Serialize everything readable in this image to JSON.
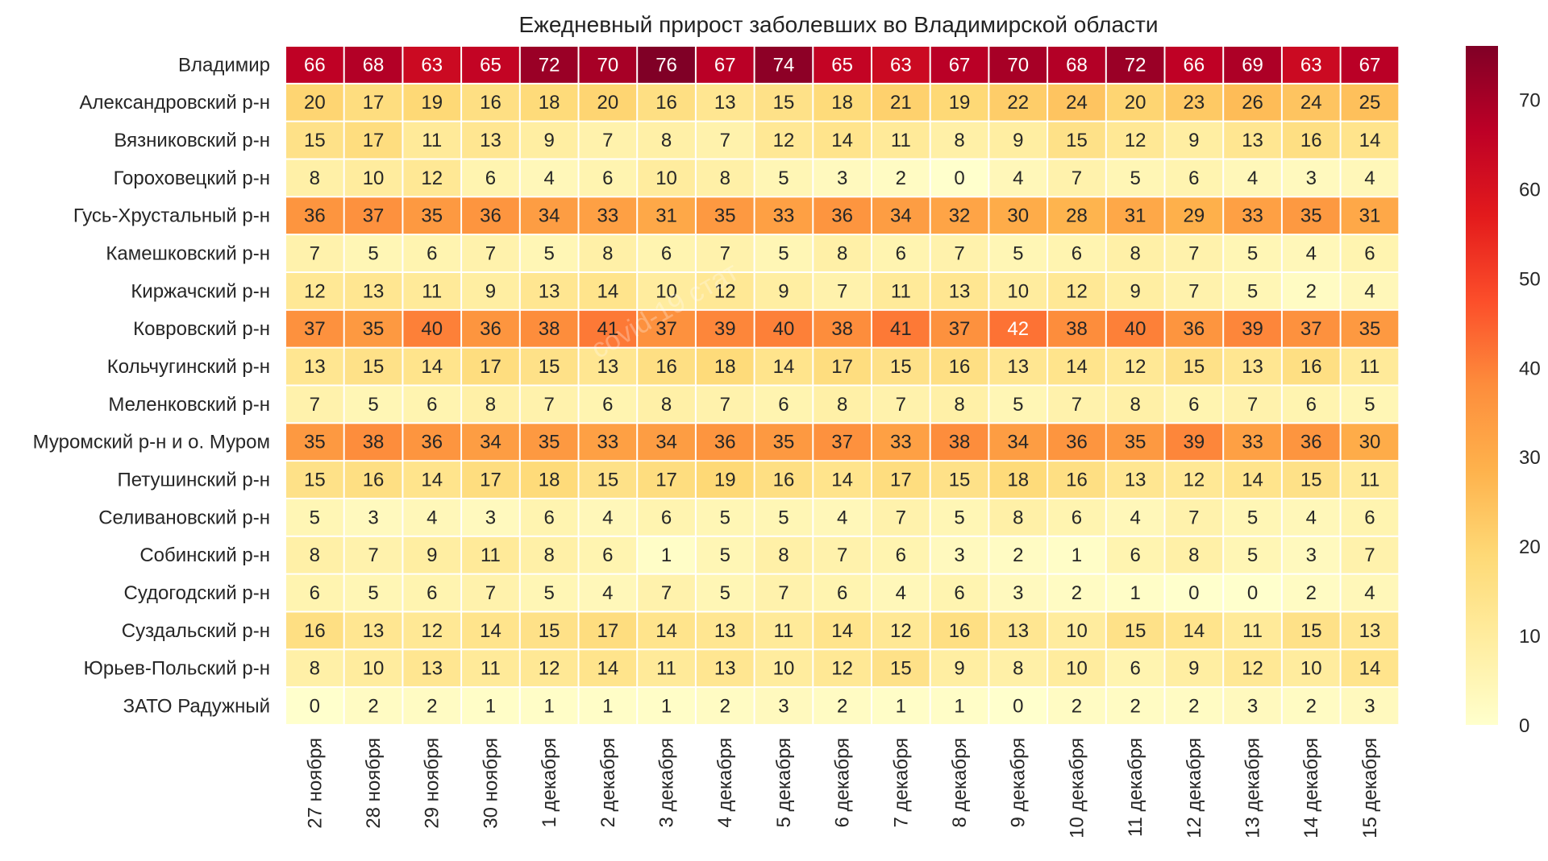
{
  "chart_data": {
    "type": "heatmap",
    "title": "Ежедневный прирост заболевших во Владимирской области",
    "rows": [
      "Владимир",
      "Александровский р-н",
      "Вязниковский р-н",
      "Гороховецкий р-н",
      "Гусь-Хрустальный р-н",
      "Камешковский р-н",
      "Киржачский р-н",
      "Ковровский р-н",
      "Кольчугинский р-н",
      "Меленковский р-н",
      "Муромский р-н и о. Муром",
      "Петушинский р-н",
      "Селивановский р-н",
      "Собинский р-н",
      "Судогодский р-н",
      "Суздальский р-н",
      "Юрьев-Польский р-н",
      "ЗАТО Радужный"
    ],
    "columns": [
      "27 ноября",
      "28 ноября",
      "29 ноября",
      "30 ноября",
      "1 декабря",
      "2 декабря",
      "3 декабря",
      "4 декабря",
      "5 декабря",
      "6 декабря",
      "7 декабря",
      "8 декабря",
      "9 декабря",
      "10 декабря",
      "11 декабря",
      "12 декабря",
      "13 декабря",
      "14 декабря",
      "15 декабря"
    ],
    "values": [
      [
        66,
        68,
        63,
        65,
        72,
        70,
        76,
        67,
        74,
        65,
        63,
        67,
        70,
        68,
        72,
        66,
        69,
        63,
        67
      ],
      [
        20,
        17,
        19,
        16,
        18,
        20,
        16,
        13,
        15,
        18,
        21,
        19,
        22,
        24,
        20,
        23,
        26,
        24,
        25
      ],
      [
        15,
        17,
        11,
        13,
        9,
        7,
        8,
        7,
        12,
        14,
        11,
        8,
        9,
        15,
        12,
        9,
        13,
        16,
        14
      ],
      [
        8,
        10,
        12,
        6,
        4,
        6,
        10,
        8,
        5,
        3,
        2,
        0,
        4,
        7,
        5,
        6,
        4,
        3,
        4
      ],
      [
        36,
        37,
        35,
        36,
        34,
        33,
        31,
        35,
        33,
        36,
        34,
        32,
        30,
        28,
        31,
        29,
        33,
        35,
        31
      ],
      [
        7,
        5,
        6,
        7,
        5,
        8,
        6,
        7,
        5,
        8,
        6,
        7,
        5,
        6,
        8,
        7,
        5,
        4,
        6
      ],
      [
        12,
        13,
        11,
        9,
        13,
        14,
        10,
        12,
        9,
        7,
        11,
        13,
        10,
        12,
        9,
        7,
        5,
        2,
        4
      ],
      [
        37,
        35,
        40,
        36,
        38,
        41,
        37,
        39,
        40,
        38,
        41,
        37,
        42,
        38,
        40,
        36,
        39,
        37,
        35
      ],
      [
        13,
        15,
        14,
        17,
        15,
        13,
        16,
        18,
        14,
        17,
        15,
        16,
        13,
        14,
        12,
        15,
        13,
        16,
        11
      ],
      [
        7,
        5,
        6,
        8,
        7,
        6,
        8,
        7,
        6,
        8,
        7,
        8,
        5,
        7,
        8,
        6,
        7,
        6,
        5
      ],
      [
        35,
        38,
        36,
        34,
        35,
        33,
        34,
        36,
        35,
        37,
        33,
        38,
        34,
        36,
        35,
        39,
        33,
        36,
        30
      ],
      [
        15,
        16,
        14,
        17,
        18,
        15,
        17,
        19,
        16,
        14,
        17,
        15,
        18,
        16,
        13,
        12,
        14,
        15,
        11
      ],
      [
        5,
        3,
        4,
        3,
        6,
        4,
        6,
        5,
        5,
        4,
        7,
        5,
        8,
        6,
        4,
        7,
        5,
        4,
        6
      ],
      [
        8,
        7,
        9,
        11,
        8,
        6,
        1,
        5,
        8,
        7,
        6,
        3,
        2,
        1,
        6,
        8,
        5,
        3,
        7
      ],
      [
        6,
        5,
        6,
        7,
        5,
        4,
        7,
        5,
        7,
        6,
        4,
        6,
        3,
        2,
        1,
        0,
        0,
        2,
        4
      ],
      [
        16,
        13,
        12,
        14,
        15,
        17,
        14,
        13,
        11,
        14,
        12,
        16,
        13,
        10,
        15,
        14,
        11,
        15,
        13
      ],
      [
        8,
        10,
        13,
        11,
        12,
        14,
        11,
        13,
        10,
        12,
        15,
        9,
        8,
        10,
        6,
        9,
        12,
        10,
        14
      ],
      [
        0,
        2,
        2,
        1,
        1,
        1,
        1,
        2,
        3,
        2,
        1,
        1,
        0,
        2,
        2,
        2,
        3,
        2,
        3
      ]
    ],
    "colorbar": {
      "min": 0,
      "max": 76,
      "ticks": [
        0,
        10,
        20,
        30,
        40,
        50,
        60,
        70
      ],
      "colormap": "YlOrRd",
      "stops": [
        "#ffffcc",
        "#ffeda0",
        "#fed976",
        "#feb24c",
        "#fd8d3c",
        "#fc4e2a",
        "#e31a1c",
        "#bd0026",
        "#800026"
      ]
    },
    "watermark": "covid-19 стат"
  }
}
